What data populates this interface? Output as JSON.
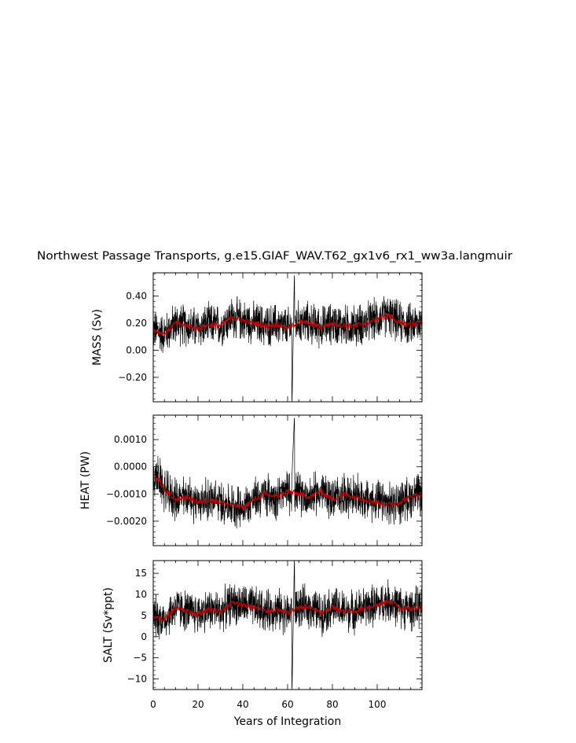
{
  "title": "Northwest Passage Transports, g.e15.GIAF_WAV.T62_gx1v6_rx1_ww3a.langmuir",
  "xlabel": "Years of Integration",
  "colors": {
    "raw": "#000000",
    "smoothed": "#cc0000",
    "frame": "#000000"
  },
  "chart_data": [
    {
      "type": "line",
      "panel": "mass",
      "ylabel": "MASS (Sv)",
      "xlim": [
        0,
        120
      ],
      "ylim": [
        -0.38,
        0.57
      ],
      "xticks": [
        "0",
        "20",
        "40",
        "60",
        "80",
        "100"
      ],
      "yticks": [
        "-0.20",
        "0.00",
        "0.20",
        "0.40"
      ],
      "series": [
        {
          "style": "black-thin",
          "x": [
            0,
            5,
            10,
            15,
            20,
            25,
            30,
            35,
            40,
            45,
            50,
            55,
            60,
            62,
            63,
            65,
            70,
            75,
            80,
            85,
            90,
            95,
            100,
            105,
            110,
            115,
            119
          ],
          "values": [
            0.18,
            0.12,
            0.2,
            0.18,
            0.16,
            0.19,
            0.18,
            0.24,
            0.22,
            0.2,
            0.18,
            0.19,
            0.16,
            -0.38,
            0.55,
            0.2,
            0.2,
            0.17,
            0.2,
            0.18,
            0.18,
            0.2,
            0.23,
            0.26,
            0.2,
            0.19,
            0.2
          ]
        },
        {
          "style": "red-smoothed",
          "x": [
            0,
            5,
            10,
            15,
            20,
            25,
            30,
            35,
            40,
            45,
            50,
            55,
            60,
            65,
            70,
            75,
            80,
            85,
            90,
            95,
            100,
            105,
            110,
            115,
            119
          ],
          "values": [
            0.15,
            0.12,
            0.2,
            0.18,
            0.16,
            0.19,
            0.18,
            0.24,
            0.22,
            0.2,
            0.18,
            0.19,
            0.16,
            0.21,
            0.2,
            0.17,
            0.2,
            0.18,
            0.18,
            0.2,
            0.23,
            0.26,
            0.2,
            0.19,
            0.2
          ]
        }
      ]
    },
    {
      "type": "line",
      "panel": "heat",
      "ylabel": "HEAT (PW)",
      "xlim": [
        0,
        120
      ],
      "ylim": [
        -0.0029,
        0.0019
      ],
      "xticks": [
        "0",
        "20",
        "40",
        "60",
        "80",
        "100"
      ],
      "yticks": [
        "-0.0020",
        "-0.0010",
        "0.0000",
        "0.0010"
      ],
      "series": [
        {
          "style": "black-thin",
          "x": [
            0,
            3,
            5,
            10,
            15,
            20,
            25,
            30,
            35,
            40,
            45,
            50,
            55,
            60,
            62,
            63,
            65,
            70,
            75,
            80,
            85,
            90,
            95,
            100,
            105,
            110,
            115,
            119
          ],
          "values": [
            -0.0003,
            -0.0005,
            -0.0009,
            -0.0012,
            -0.0011,
            -0.0013,
            -0.0012,
            -0.0013,
            -0.0014,
            -0.0015,
            -0.0012,
            -0.001,
            -0.0011,
            -0.0009,
            -0.0002,
            0.0018,
            -0.001,
            -0.0011,
            -0.0009,
            -0.0012,
            -0.001,
            -0.0011,
            -0.0012,
            -0.0013,
            -0.0014,
            -0.0013,
            -0.0011,
            -0.001
          ]
        },
        {
          "style": "red-smoothed",
          "x": [
            0,
            3,
            5,
            10,
            15,
            20,
            25,
            30,
            35,
            40,
            45,
            50,
            55,
            60,
            65,
            70,
            75,
            80,
            85,
            90,
            95,
            100,
            105,
            110,
            115,
            119
          ],
          "values": [
            -0.0003,
            -0.0005,
            -0.0009,
            -0.0012,
            -0.0011,
            -0.0013,
            -0.0012,
            -0.0013,
            -0.0014,
            -0.0015,
            -0.0012,
            -0.001,
            -0.0011,
            -0.0009,
            -0.001,
            -0.0011,
            -0.0009,
            -0.0012,
            -0.001,
            -0.0011,
            -0.0012,
            -0.0013,
            -0.0014,
            -0.0013,
            -0.0011,
            -0.001
          ]
        }
      ]
    },
    {
      "type": "line",
      "panel": "salt",
      "ylabel": "SALT (Sv*ppt)",
      "xlim": [
        0,
        120
      ],
      "ylim": [
        -12.5,
        18
      ],
      "xticks": [
        "0",
        "20",
        "40",
        "60",
        "80",
        "100"
      ],
      "yticks": [
        "-10",
        "-5",
        "0",
        "5",
        "10",
        "15"
      ],
      "series": [
        {
          "style": "black-thin",
          "x": [
            0,
            5,
            10,
            15,
            20,
            25,
            30,
            35,
            40,
            45,
            50,
            55,
            60,
            62,
            63,
            65,
            70,
            75,
            80,
            85,
            90,
            95,
            100,
            105,
            110,
            115,
            119
          ],
          "values": [
            6,
            4,
            7,
            6,
            5.5,
            6.5,
            6,
            8,
            7.5,
            7,
            6,
            6.5,
            5.5,
            -12.5,
            18,
            7,
            7,
            5.5,
            7,
            6,
            6,
            7,
            7.5,
            8.5,
            7,
            6.5,
            7
          ]
        },
        {
          "style": "red-smoothed",
          "x": [
            0,
            5,
            10,
            15,
            20,
            25,
            30,
            35,
            40,
            45,
            50,
            55,
            60,
            65,
            70,
            75,
            80,
            85,
            90,
            95,
            100,
            105,
            110,
            115,
            119
          ],
          "values": [
            5,
            4,
            7,
            6,
            5.5,
            6.5,
            6,
            8,
            7.5,
            7,
            6,
            6.5,
            5.5,
            7,
            7,
            5.5,
            7,
            6,
            6,
            7,
            7.5,
            8.5,
            7,
            6.5,
            7
          ]
        }
      ]
    }
  ]
}
